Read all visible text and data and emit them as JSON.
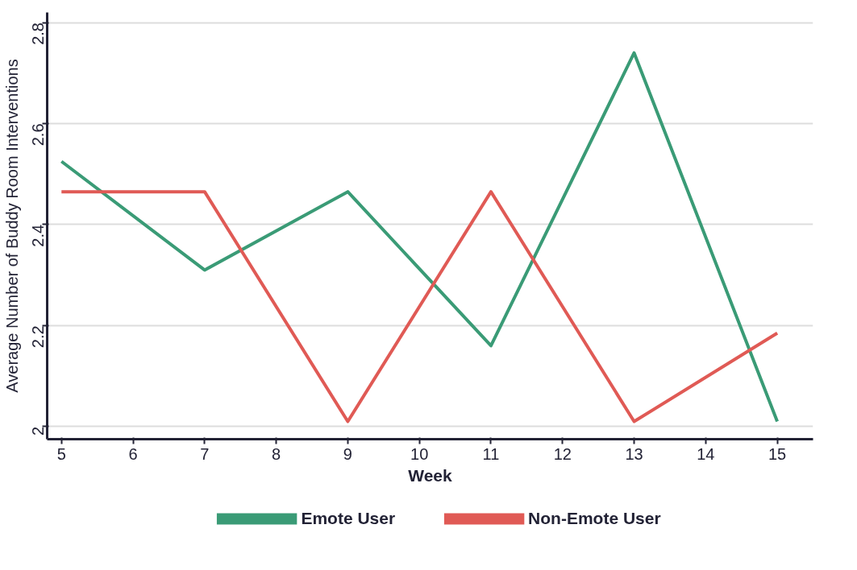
{
  "chart_data": {
    "type": "line",
    "xlabel": "Week",
    "ylabel": "Average Number of Buddy Room Interventions",
    "x": [
      5,
      7,
      9,
      11,
      13,
      15
    ],
    "series": [
      {
        "name": "Emote User",
        "color": "#3a9b76",
        "values": [
          2.525,
          2.31,
          2.465,
          2.16,
          2.74,
          2.01
        ]
      },
      {
        "name": "Non-Emote User",
        "color": "#e05a55",
        "values": [
          2.465,
          2.465,
          2.01,
          2.465,
          2.01,
          2.185
        ]
      }
    ],
    "xlim": [
      4.8,
      15.5
    ],
    "xticks": [
      5,
      6,
      7,
      8,
      9,
      10,
      11,
      12,
      13,
      14,
      15
    ],
    "ylim": [
      1.975,
      2.82
    ],
    "yticks": [
      2,
      2.2,
      2.4,
      2.6,
      2.8
    ],
    "grid": "y",
    "legend": "bottom",
    "marker": "none",
    "line_style": "solid"
  }
}
